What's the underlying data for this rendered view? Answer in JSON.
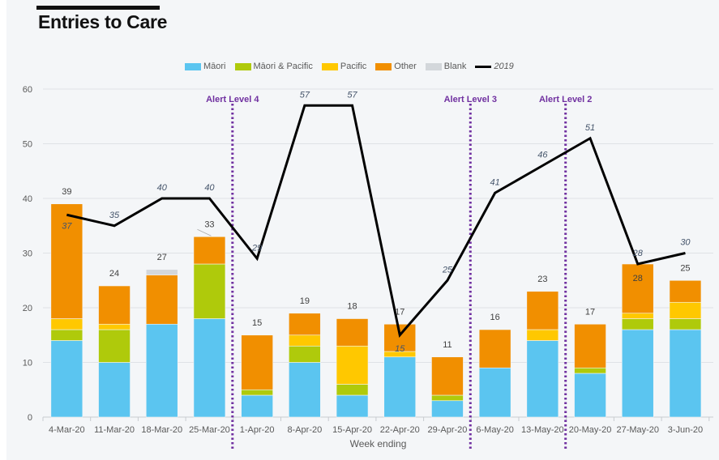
{
  "chart_data": {
    "type": "bar",
    "title": "Entries to Care",
    "xlabel": "Week ending",
    "ylabel": "",
    "ylim": [
      0,
      60
    ],
    "yticks": [
      0,
      10,
      20,
      30,
      40,
      50,
      60
    ],
    "grid": true,
    "legend": "top-center",
    "stacked": true,
    "categories": [
      "4-Mar-20",
      "11-Mar-20",
      "18-Mar-20",
      "25-Mar-20",
      "1-Apr-20",
      "8-Apr-20",
      "15-Apr-20",
      "22-Apr-20",
      "29-Apr-20",
      "6-May-20",
      "13-May-20",
      "20-May-20",
      "27-May-20",
      "3-Jun-20"
    ],
    "series": [
      {
        "name": "Māori",
        "color": "#5bc5f0",
        "values": [
          14,
          10,
          17,
          18,
          4,
          10,
          4,
          11,
          3,
          9,
          14,
          8,
          16,
          16
        ]
      },
      {
        "name": "Māori & Pacific",
        "color": "#afca0b",
        "values": [
          2,
          6,
          0,
          10,
          1,
          3,
          2,
          0,
          1,
          0,
          0,
          1,
          2,
          2
        ]
      },
      {
        "name": "Pacific",
        "color": "#ffc800",
        "values": [
          2,
          1,
          0,
          0,
          0,
          2,
          7,
          1,
          0,
          0,
          2,
          0,
          1,
          3
        ]
      },
      {
        "name": "Other",
        "color": "#f18f00",
        "values": [
          21,
          7,
          9,
          5,
          10,
          4,
          5,
          5,
          7,
          7,
          7,
          8,
          9,
          4
        ]
      },
      {
        "name": "Blank",
        "color": "#d3d7db",
        "values": [
          0,
          0,
          1,
          0,
          0,
          0,
          0,
          0,
          0,
          0,
          0,
          0,
          0,
          0
        ]
      }
    ],
    "totals": [
      39,
      24,
      27,
      33,
      15,
      19,
      18,
      17,
      11,
      16,
      23,
      17,
      28,
      25
    ],
    "line_series": {
      "name": "2019",
      "color": "#000000",
      "values": [
        37,
        35,
        40,
        40,
        29,
        57,
        57,
        15,
        25,
        41,
        46,
        51,
        28,
        30
      ]
    },
    "annotations": [
      {
        "text": "Alert Level 4",
        "between": [
          "25-Mar-20",
          "1-Apr-20"
        ],
        "color": "#7030a0"
      },
      {
        "text": "Alert Level 3",
        "between": [
          "29-Apr-20",
          "6-May-20"
        ],
        "color": "#7030a0"
      },
      {
        "text": "Alert Level 2",
        "between": [
          "13-May-20",
          "20-May-20"
        ],
        "color": "#7030a0"
      }
    ]
  }
}
